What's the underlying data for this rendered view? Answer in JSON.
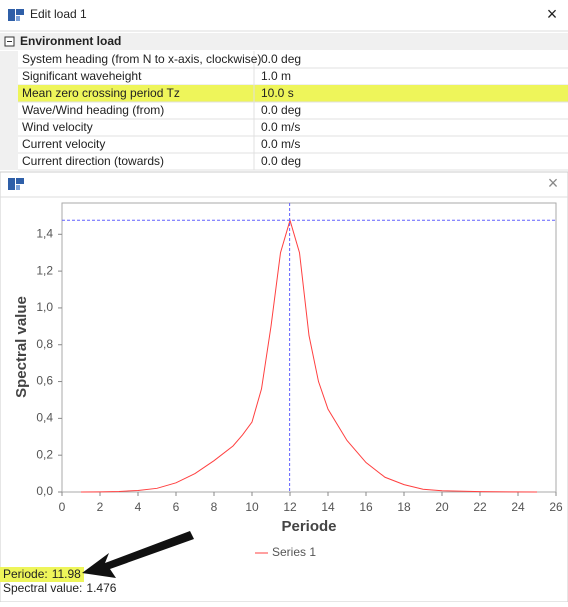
{
  "window_title": "Edit load 1",
  "section": "Environment load",
  "rows": [
    [
      "System heading (from N to x-axis, clockwise)",
      "0.0 deg"
    ],
    [
      "Significant waveheight",
      "1.0 m"
    ],
    [
      "Mean zero crossing period Tz",
      "10.0 s"
    ],
    [
      "Wave/Wind heading (from)",
      "0.0 deg"
    ],
    [
      "Wind velocity",
      "0.0 m/s"
    ],
    [
      "Current velocity",
      "0.0 m/s"
    ],
    [
      "Current direction (towards)",
      "0.0 deg"
    ]
  ],
  "highlighted_row": 2,
  "status_labels": [
    "Periode:",
    "Spectral value:"
  ],
  "chart_data": {
    "type": "line",
    "x_label": "Periode",
    "y_label": "Spectral value",
    "x": [
      1,
      2,
      3,
      4,
      5,
      6,
      7,
      8,
      9,
      9.5,
      10,
      10.5,
      11,
      11.5,
      12,
      12.5,
      13,
      13.5,
      14,
      15,
      16,
      17,
      18,
      19,
      20,
      22,
      25
    ],
    "series": [
      {
        "name": "Series 1",
        "color": "#ff4040",
        "values": [
          0,
          0.001,
          0.003,
          0.008,
          0.02,
          0.05,
          0.1,
          0.17,
          0.25,
          0.31,
          0.38,
          0.56,
          0.9,
          1.3,
          1.476,
          1.3,
          0.85,
          0.6,
          0.45,
          0.28,
          0.16,
          0.08,
          0.04,
          0.015,
          0.007,
          0.002,
          0
        ]
      }
    ],
    "xlim": [
      0,
      26
    ],
    "xticks": [
      0,
      2,
      4,
      6,
      8,
      10,
      12,
      14,
      16,
      18,
      20,
      22,
      24,
      26
    ],
    "ylim": [
      0,
      1.57
    ],
    "yticks": [
      {
        "value": 0,
        "label": "0,0"
      },
      {
        "value": 0.2,
        "label": "0,2"
      },
      {
        "value": 0.4,
        "label": "0,4"
      },
      {
        "value": 0.6,
        "label": "0,6"
      },
      {
        "value": 0.8,
        "label": "0,8"
      },
      {
        "value": 1.0,
        "label": "1,0"
      },
      {
        "value": 1.2,
        "label": "1,2"
      },
      {
        "value": 1.4,
        "label": "1,4"
      }
    ],
    "crosshair": {
      "x": 11.98,
      "y": 1.476
    },
    "crosshair_color": "#6060ff"
  }
}
